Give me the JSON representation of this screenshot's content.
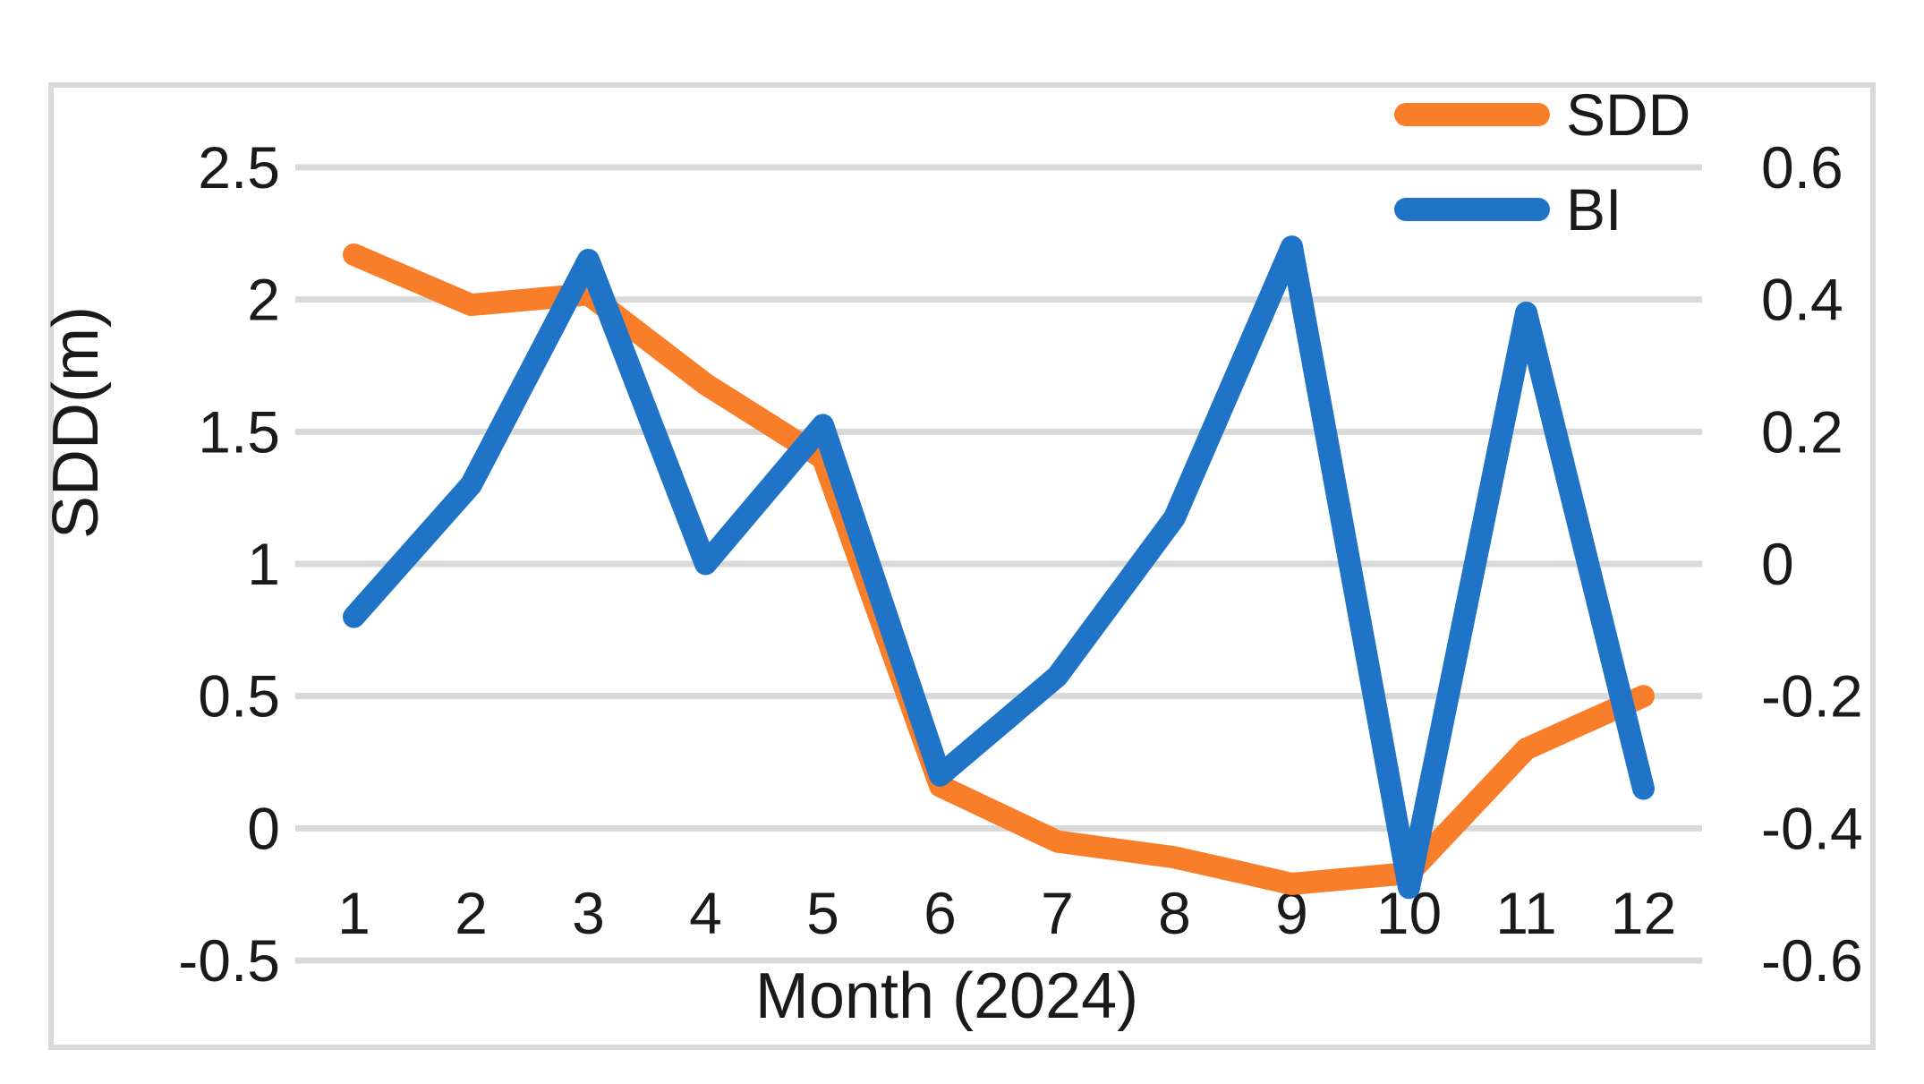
{
  "chart_data": {
    "type": "line",
    "title": "",
    "xlabel": "Month (2024)",
    "x_categories": [
      "1",
      "2",
      "3",
      "4",
      "5",
      "6",
      "7",
      "8",
      "9",
      "10",
      "11",
      "12"
    ],
    "series": [
      {
        "name": "SDD",
        "axis": "left",
        "color": "#F87E2A",
        "values": [
          2.17,
          1.98,
          2.02,
          1.68,
          1.4,
          0.16,
          -0.05,
          -0.11,
          -0.21,
          -0.17,
          0.3,
          0.5
        ]
      },
      {
        "name": "BI",
        "axis": "right",
        "color": "#2074C8",
        "values": [
          -0.08,
          0.12,
          0.46,
          0.0,
          0.21,
          -0.32,
          -0.17,
          0.07,
          0.48,
          -0.49,
          0.38,
          -0.34
        ]
      }
    ],
    "axes": {
      "left": {
        "label": "SDD(m)",
        "min": -0.5,
        "max": 2.5,
        "tick_labels": [
          "2.5",
          "2",
          "1.5",
          "1",
          "0.5",
          "0",
          "-0.5"
        ],
        "tick_values": [
          2.5,
          2,
          1.5,
          1,
          0.5,
          0,
          -0.5
        ]
      },
      "right": {
        "label": "",
        "min": -0.6,
        "max": 0.6,
        "tick_labels": [
          "0.6",
          "0.4",
          "0.2",
          "0",
          "-0.2",
          "-0.4",
          "-0.6"
        ],
        "tick_values": [
          0.6,
          0.4,
          0.2,
          0,
          -0.2,
          -0.4,
          -0.6
        ]
      }
    },
    "legend": {
      "position": "top-right",
      "entries": [
        "SDD",
        "BI"
      ]
    },
    "grid": true,
    "colors": {
      "gridline": "#D9D9D9",
      "border": "#D9D9D9",
      "text": "#1A1A1A",
      "background": "#FFFFFF"
    }
  }
}
